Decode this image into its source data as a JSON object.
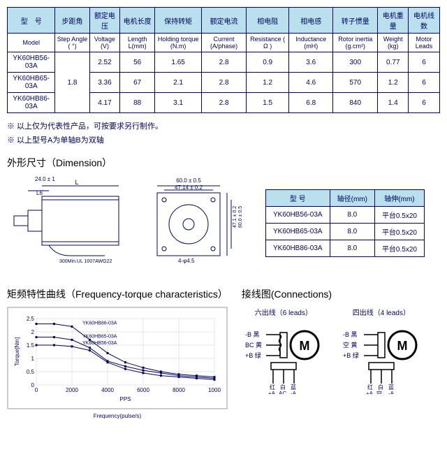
{
  "spec_table": {
    "headers_cn": [
      "型　号",
      "步距角",
      "额定电压",
      "电机长度",
      "保持转矩",
      "额定电流",
      "相电阻",
      "相电感",
      "转子惯量",
      "电机重量",
      "电机线数"
    ],
    "headers_en": [
      "Model",
      "Step Angle ( °)",
      "Voltage (V)",
      "Length L(mm)",
      "Holding torque (N.m)",
      "Current (A/phase)",
      "Resistance ( Ω )",
      "Inductance (mH)",
      "Rotor inertia (g.cm²)",
      "Weight (kg)",
      "Motor Leads"
    ],
    "rows": [
      {
        "model": "YK60HB56-03A",
        "step": "1.8",
        "volt": "2.52",
        "len": "56",
        "torque": "1.65",
        "cur": "2.8",
        "res": "0.9",
        "ind": "3.6",
        "inertia": "300",
        "weight": "0.77",
        "leads": "6"
      },
      {
        "model": "YK60HB65-03A",
        "step": "1.8",
        "volt": "3.36",
        "len": "67",
        "torque": "2.1",
        "cur": "2.8",
        "res": "1.2",
        "ind": "4.6",
        "inertia": "570",
        "weight": "1.2",
        "leads": "6"
      },
      {
        "model": "YK60HB86-03A",
        "step": "1.8",
        "volt": "4.17",
        "len": "88",
        "torque": "3.1",
        "cur": "2.8",
        "res": "1.5",
        "ind": "6.8",
        "inertia": "840",
        "weight": "1.4",
        "leads": "6"
      }
    ]
  },
  "notes": {
    "n1": "※ 以上仅为代表性产品，可按要求另行制作。",
    "n2": "※ 以上型号A为单轴B为双轴"
  },
  "sections": {
    "dimension": "外形尺寸（Dimension）",
    "freq_torque": "矩频特性曲线（Frequency-torque characteristics）",
    "connections": "接线图(Connections)"
  },
  "dim_drawing": {
    "front_w": "60.0 ± 0.5",
    "front_inner": "47.14 ± 0.2",
    "side_l": "L",
    "side_24": "24.0 ± 1",
    "side_l6": "L6",
    "hole": "4-φ4.5",
    "wire": "300Min.UL 1007AWG22",
    "height_471": "47.1 ± 0.2",
    "height_600": "60.0 ± 0.5"
  },
  "dim_table": {
    "headers": [
      "型 号",
      "轴径(mm)",
      "轴伸(mm)"
    ],
    "rows": [
      {
        "m": "YK60HB56-03A",
        "d": "8.0",
        "e": "平台0.5x20"
      },
      {
        "m": "YK60HB65-03A",
        "d": "8.0",
        "e": "平台0.5x20"
      },
      {
        "m": "YK60HB86-03A",
        "d": "8.0",
        "e": "平台0.5x20"
      }
    ]
  },
  "chart": {
    "ylabel": "Torque[Nm]",
    "xlabel": "PPS",
    "sublabel": "Frequency(pulse/s)",
    "xmin": 0,
    "xmax": 1000,
    "xstep": 2000,
    "xticks": [
      "0",
      "2000",
      "4000",
      "6000",
      "8000",
      "1000"
    ],
    "ymin": 0,
    "ymax": 2.5,
    "ystep": 0.5,
    "series": [
      {
        "name": "YK60HB86-03A",
        "color": "#000066",
        "pts": [
          [
            0,
            2.3
          ],
          [
            100,
            2.3
          ],
          [
            200,
            2.2
          ],
          [
            300,
            1.7
          ],
          [
            400,
            1.2
          ],
          [
            500,
            0.85
          ],
          [
            600,
            0.65
          ],
          [
            700,
            0.5
          ],
          [
            800,
            0.4
          ],
          [
            900,
            0.35
          ],
          [
            1000,
            0.3
          ]
        ]
      },
      {
        "name": "YK60HB65-03A",
        "color": "#000066",
        "pts": [
          [
            0,
            1.8
          ],
          [
            100,
            1.8
          ],
          [
            200,
            1.7
          ],
          [
            300,
            1.4
          ],
          [
            400,
            0.9
          ],
          [
            500,
            0.7
          ],
          [
            600,
            0.55
          ],
          [
            700,
            0.45
          ],
          [
            800,
            0.35
          ],
          [
            900,
            0.3
          ],
          [
            1000,
            0.25
          ]
        ]
      },
      {
        "name": "YK60HB56-03A",
        "color": "#000066",
        "pts": [
          [
            0,
            1.5
          ],
          [
            100,
            1.5
          ],
          [
            200,
            1.45
          ],
          [
            300,
            1.3
          ],
          [
            400,
            0.85
          ],
          [
            500,
            0.6
          ],
          [
            600,
            0.45
          ],
          [
            700,
            0.35
          ],
          [
            800,
            0.3
          ],
          [
            900,
            0.25
          ],
          [
            1000,
            0.2
          ]
        ]
      }
    ]
  },
  "connections": {
    "six_title": "六出线（6 leads）",
    "four_title": "四出线（4 leads）",
    "six": {
      "top": [
        "-B 黑",
        "BC 黄",
        "+B 绿"
      ],
      "bot": [
        "红",
        "白",
        "蓝"
      ],
      "bot2": [
        "+A",
        "AC",
        "-A"
      ]
    },
    "four": {
      "top": [
        "-B 黑",
        "空 黄",
        "+B 绿"
      ],
      "bot": [
        "红",
        "白",
        "蓝"
      ],
      "bot2": [
        "+A",
        "空",
        "-A"
      ]
    },
    "m": "M"
  }
}
